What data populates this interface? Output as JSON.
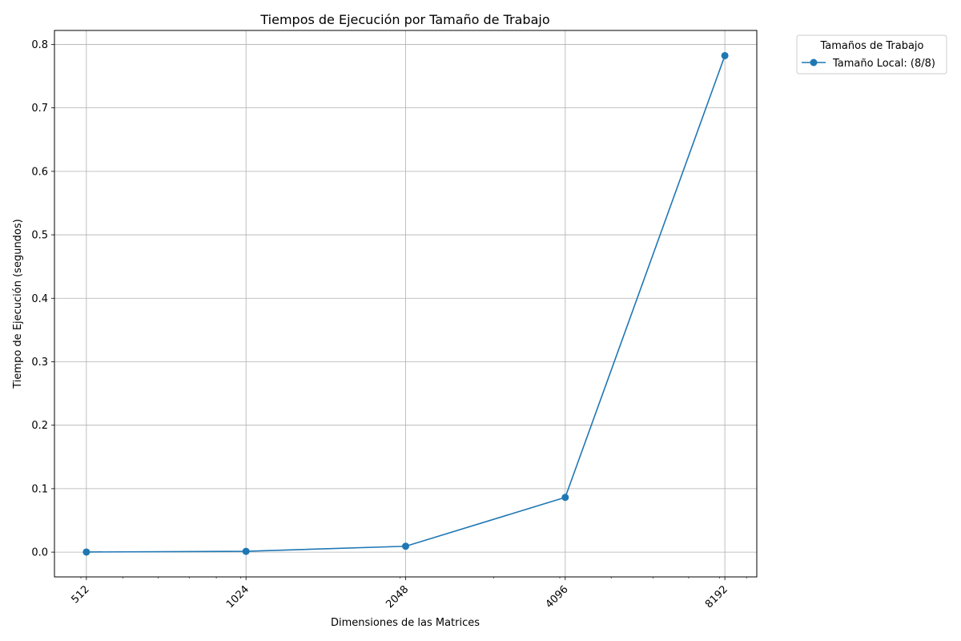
{
  "chart_data": {
    "type": "line",
    "title": "Tiempos de Ejecución por Tamaño de Trabajo",
    "xlabel": "Dimensiones de las Matrices",
    "ylabel": "Tiempo de Ejecución (segundos)",
    "x_scale": "log2",
    "x": [
      512,
      1024,
      2048,
      4096,
      8192
    ],
    "xticks": [
      "512",
      "1024",
      "2048",
      "4096",
      "8192"
    ],
    "xtick_rotation": 45,
    "yticks": [
      "0.0",
      "0.1",
      "0.2",
      "0.3",
      "0.4",
      "0.5",
      "0.6",
      "0.7",
      "0.8"
    ],
    "ylim": [
      -0.039,
      0.822
    ],
    "grid": true,
    "series": [
      {
        "name": "Tamaño Local: (8/8)",
        "values": [
          0.0002,
          0.0013,
          0.0093,
          0.0863,
          0.7823
        ],
        "color": "#1f77b4",
        "marker": "circle"
      }
    ],
    "legend": {
      "title": "Tamaños de Trabajo",
      "placement": "outside-top-right"
    }
  }
}
